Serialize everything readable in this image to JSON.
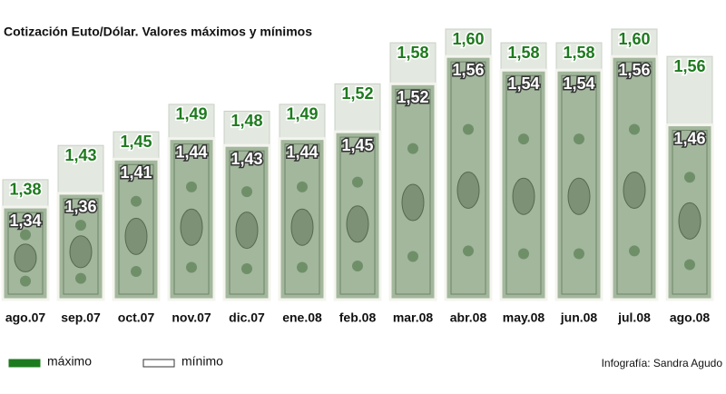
{
  "chart_data": {
    "type": "bar",
    "title": "Cotización Euto/Dólar. Valores máximos y mínimos",
    "categories": [
      "ago.07",
      "sep.07",
      "oct.07",
      "nov.07",
      "dic.07",
      "ene.08",
      "feb.08",
      "mar.08",
      "abr.08",
      "may.08",
      "jun.08",
      "jul.08",
      "ago.08"
    ],
    "series": [
      {
        "name": "máximo",
        "color": "#1e7a1e",
        "values": [
          1.38,
          1.43,
          1.45,
          1.49,
          1.48,
          1.49,
          1.52,
          1.58,
          1.6,
          1.58,
          1.58,
          1.6,
          1.56
        ],
        "value_labels": [
          "1,38",
          "1,43",
          "1,45",
          "1,49",
          "1,48",
          "1,49",
          "1,52",
          "1,58",
          "1,60",
          "1,58",
          "1,58",
          "1,60",
          "1,56"
        ]
      },
      {
        "name": "mínimo",
        "color": "#ffffff",
        "values": [
          1.34,
          1.36,
          1.41,
          1.44,
          1.43,
          1.44,
          1.45,
          1.52,
          1.56,
          1.54,
          1.54,
          1.56,
          1.46
        ],
        "value_labels": [
          "1,34",
          "1,36",
          "1,41",
          "1,44",
          "1,43",
          "1,44",
          "1,45",
          "1,52",
          "1,56",
          "1,54",
          "1,54",
          "1,56",
          "1,46"
        ]
      }
    ],
    "credit": "Infografía:  Sandra Agudo"
  }
}
